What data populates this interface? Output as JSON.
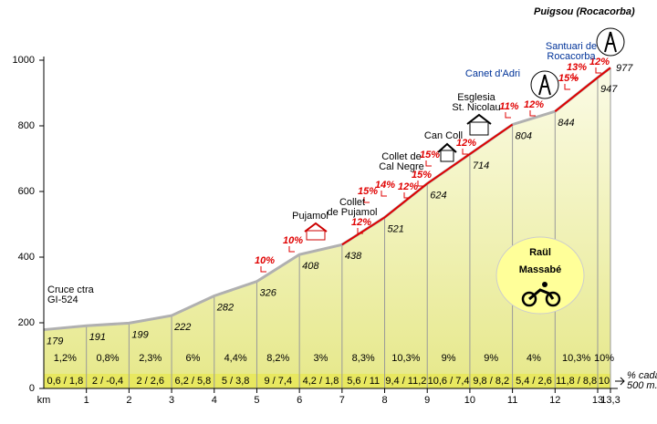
{
  "chart_data": {
    "type": "area",
    "title": "Puigsou  (Rocacorba)",
    "x_label": "km",
    "x": [
      0,
      1,
      2,
      3,
      4,
      5,
      6,
      7,
      8,
      9,
      10,
      11,
      12,
      13,
      13.3
    ],
    "values": [
      179,
      191,
      199,
      222,
      282,
      326,
      408,
      438,
      521,
      624,
      714,
      804,
      844,
      947,
      977
    ],
    "xlim": [
      0,
      13.3
    ],
    "xticks": [
      1,
      2,
      3,
      4,
      5,
      6,
      7,
      8,
      9,
      10,
      11,
      12,
      13,
      {
        "value": 13.3,
        "label": "13,3"
      }
    ],
    "ylim": [
      0,
      1000
    ],
    "yticks": [
      0,
      200,
      400,
      600,
      800,
      1000
    ],
    "color": "#eef0a8",
    "line_color": "#b0b0b0",
    "steep_color": "#e00000",
    "segment_gradients": [
      "1,2%",
      "0,8%",
      "2,3%",
      "6%",
      "4,4%",
      "8,2%",
      "3%",
      "8,3%",
      "10,3%",
      "9%",
      "9%",
      "4%",
      "10,3%",
      "10%"
    ],
    "half_km_gradients": [
      "0,6 / 1,8",
      "2  / -0,4",
      "2  /  2,6",
      "6,2 / 5,8",
      "5  /  3,8",
      "9  /  7,4",
      "4,2 / 1,8",
      "5,6  /  11",
      "9,4 / 11,2",
      "10,6 / 7,4",
      "9,8 / 8,2",
      "5,4 / 2,6",
      "11,8 / 8,8",
      "10"
    ],
    "steep_gradients": [
      "10%",
      "10%",
      "12%",
      "15%",
      "14%",
      "12%",
      "15%",
      "15%",
      "12%",
      "11%",
      "12%",
      "15%",
      "13%",
      "12%"
    ],
    "annotations": [
      {
        "lines": [
          "Cruce ctra",
          "GI-524"
        ]
      },
      {
        "lines": [
          "Pujamol"
        ]
      },
      {
        "lines": [
          "Collet",
          "de Pujamol"
        ]
      },
      {
        "lines": [
          "Collet de",
          "Cal Negre"
        ]
      },
      {
        "lines": [
          "Can Coll"
        ]
      },
      {
        "lines": [
          "Esglesia",
          "St. Nicolau"
        ]
      },
      {
        "lines": [
          "Canet d'Adri"
        ]
      },
      {
        "lines": [
          "Santuari de",
          "Rocacorba"
        ]
      }
    ],
    "author": [
      "Raül",
      "Massabé"
    ],
    "legend_note": [
      "% cada",
      "500 m."
    ]
  }
}
